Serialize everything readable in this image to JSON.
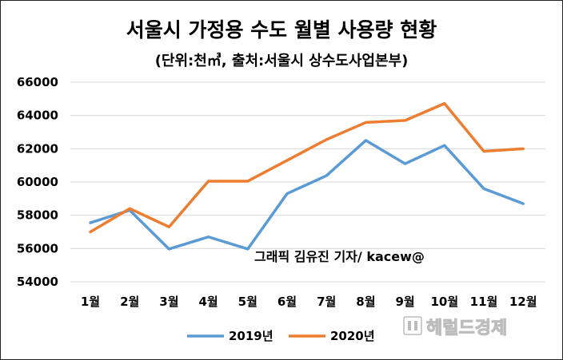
{
  "chart_data": {
    "type": "line",
    "title": "서울시 가정용 수도 월별 사용량 현황",
    "subtitle": "(단위:천㎥, 출처:서울시 상수도사업본부)",
    "categories": [
      "1월",
      "2월",
      "3월",
      "4월",
      "5월",
      "6월",
      "7월",
      "8월",
      "9월",
      "10월",
      "11월",
      "12월"
    ],
    "series": [
      {
        "name": "2019년",
        "color": "#5b9bd5",
        "values": [
          57550,
          58300,
          55970,
          56700,
          55970,
          59300,
          60380,
          62500,
          61100,
          62200,
          59600,
          58700
        ]
      },
      {
        "name": "2020년",
        "color": "#ed7d31",
        "values": [
          57000,
          58400,
          57300,
          60050,
          60050,
          61300,
          62550,
          63580,
          63700,
          64720,
          61850,
          62000
        ]
      }
    ],
    "yticks": [
      "54000",
      "56000",
      "58000",
      "60000",
      "62000",
      "64000",
      "66000"
    ],
    "ylim": [
      54000,
      66000
    ],
    "grid": true,
    "legend_position": "bottom",
    "annotation": "그래픽 김유진 기자/ kacew@",
    "watermark": "헤럴드경제"
  }
}
